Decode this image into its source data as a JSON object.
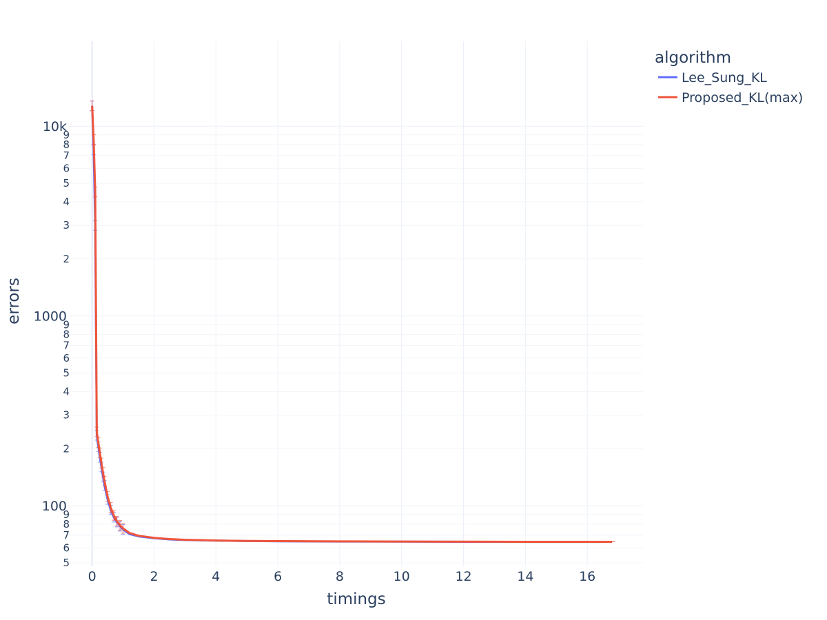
{
  "chart_data": {
    "type": "line",
    "title": "",
    "xlabel": "timings",
    "ylabel": "errors",
    "x_scale": "linear",
    "y_scale": "log",
    "xlim": [
      -0.75,
      17.8
    ],
    "ylim": [
      48,
      28000
    ],
    "grid": true,
    "x_ticks": [
      0,
      2,
      4,
      6,
      8,
      10,
      12,
      14,
      16
    ],
    "y_major_ticks": [
      {
        "value": 100,
        "label": "100"
      },
      {
        "value": 1000,
        "label": "1000"
      },
      {
        "value": 10000,
        "label": "10k"
      }
    ],
    "y_minor_ticks": [
      {
        "value": 50,
        "label": "5"
      },
      {
        "value": 60,
        "label": "6"
      },
      {
        "value": 70,
        "label": "7"
      },
      {
        "value": 80,
        "label": "8"
      },
      {
        "value": 90,
        "label": "9"
      },
      {
        "value": 200,
        "label": "2"
      },
      {
        "value": 300,
        "label": "3"
      },
      {
        "value": 400,
        "label": "4"
      },
      {
        "value": 500,
        "label": "5"
      },
      {
        "value": 600,
        "label": "6"
      },
      {
        "value": 700,
        "label": "7"
      },
      {
        "value": 800,
        "label": "8"
      },
      {
        "value": 900,
        "label": "9"
      },
      {
        "value": 2000,
        "label": "2"
      },
      {
        "value": 3000,
        "label": "3"
      },
      {
        "value": 4000,
        "label": "4"
      },
      {
        "value": 5000,
        "label": "5"
      },
      {
        "value": 6000,
        "label": "6"
      },
      {
        "value": 7000,
        "label": "7"
      },
      {
        "value": 8000,
        "label": "8"
      },
      {
        "value": 9000,
        "label": "9"
      }
    ],
    "legend": {
      "title": "algorithm",
      "position": "top-right"
    },
    "series": [
      {
        "name": "Lee_Sung_KL",
        "color": "#636efa",
        "error_bars": true,
        "x": [
          0,
          0.05,
          0.1,
          0.15,
          0.2,
          0.25,
          0.3,
          0.35,
          0.4,
          0.5,
          0.6,
          0.7,
          0.8,
          0.9,
          1.0,
          1.2,
          1.5,
          2.0,
          2.5,
          3.0,
          4.0,
          5.0,
          6.0,
          8.0,
          10.0,
          12.0,
          14.0,
          16.0,
          16.4
        ],
        "y": [
          12800,
          7500,
          3000,
          235,
          205,
          180,
          160,
          142,
          128,
          108,
          95,
          87,
          82,
          78,
          75,
          71,
          69,
          67.5,
          66.5,
          66,
          65.5,
          65.2,
          65,
          64.8,
          64.7,
          64.6,
          64.5,
          64.5,
          64.5
        ]
      },
      {
        "name": "Proposed_KL(max)",
        "color": "#ef553b",
        "error_bars": true,
        "x": [
          0,
          0.05,
          0.1,
          0.15,
          0.2,
          0.25,
          0.3,
          0.35,
          0.4,
          0.5,
          0.6,
          0.7,
          0.8,
          0.9,
          1.0,
          1.2,
          1.5,
          2.0,
          2.5,
          3.0,
          4.0,
          5.0,
          6.0,
          8.0,
          10.0,
          12.0,
          14.0,
          16.0,
          16.8
        ],
        "y": [
          12800,
          8500,
          4500,
          245,
          215,
          190,
          168,
          150,
          135,
          112,
          98,
          89,
          83,
          79,
          76,
          72,
          69.5,
          67.8,
          66.8,
          66.2,
          65.6,
          65.3,
          65.1,
          64.9,
          64.8,
          64.7,
          64.6,
          64.6,
          64.6
        ]
      }
    ]
  }
}
